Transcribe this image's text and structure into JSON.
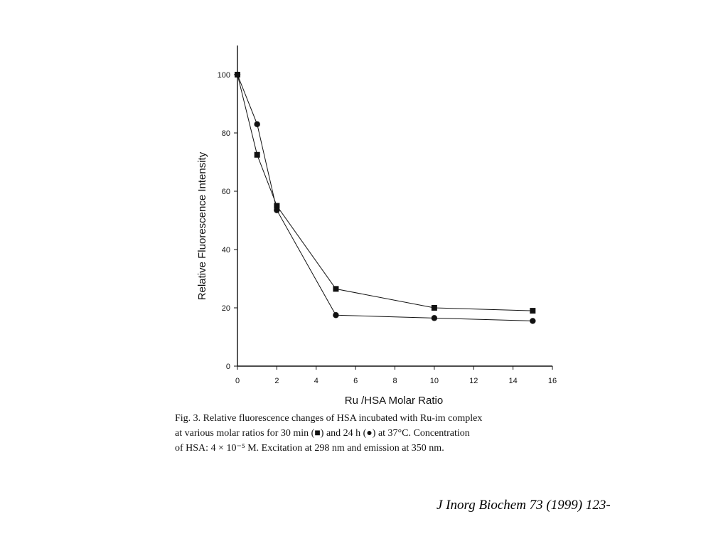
{
  "chart_data": {
    "type": "line",
    "xlabel": "Ru /HSA Molar Ratio",
    "ylabel": "Relative Fluorescence Intensity",
    "xlim": [
      0,
      16
    ],
    "ylim": [
      0,
      110
    ],
    "x_ticks": [
      0,
      2,
      4,
      6,
      8,
      10,
      12,
      14,
      16
    ],
    "y_ticks": [
      0,
      20,
      40,
      60,
      80,
      100
    ],
    "grid": false,
    "legend": "none",
    "series": [
      {
        "marker": "square",
        "color": "#111111",
        "points": [
          [
            0,
            100
          ],
          [
            1,
            72.5
          ],
          [
            2,
            55
          ],
          [
            5,
            26.5
          ],
          [
            10,
            20
          ],
          [
            15,
            19
          ]
        ]
      },
      {
        "marker": "circle",
        "color": "#111111",
        "points": [
          [
            0,
            100
          ],
          [
            1,
            83
          ],
          [
            2,
            53.5
          ],
          [
            5,
            17.5
          ],
          [
            10,
            16.5
          ],
          [
            15,
            15.5
          ]
        ]
      }
    ]
  },
  "caption": {
    "line1": "Fig. 3. Relative fluorescence changes of HSA incubated with Ru-im complex",
    "line2": "at various molar ratios for 30 min (■) and 24 h (●) at 37°C. Concentration",
    "line3": "of HSA: 4 × 10⁻⁵ M. Excitation at 298 nm and emission at 350 nm."
  },
  "citation": "J Inorg Biochem 73 (1999) 123-"
}
